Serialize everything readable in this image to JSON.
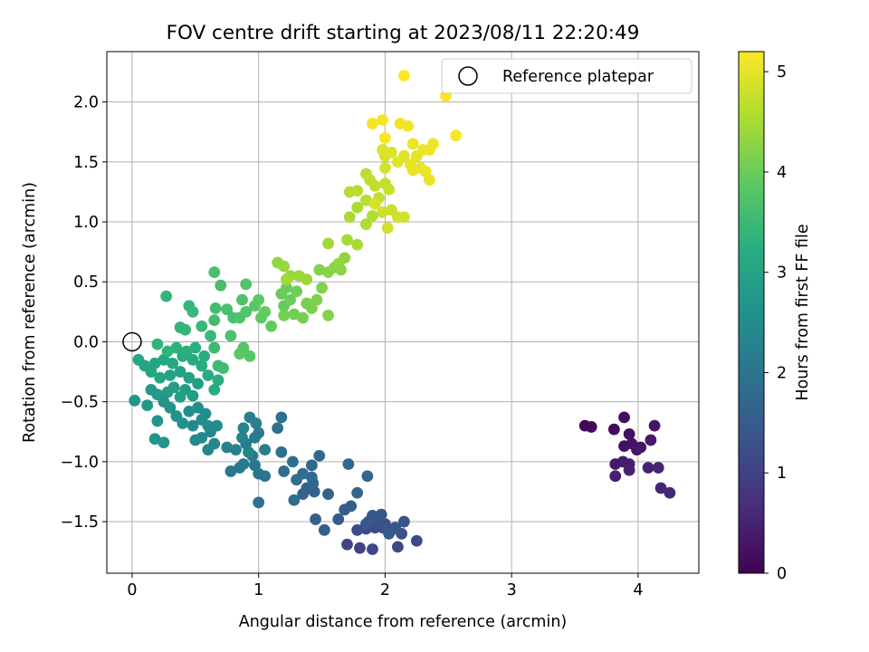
{
  "chart_data": {
    "type": "scatter",
    "title": "FOV centre drift starting at 2023/08/11 22:20:49",
    "xlabel": "Angular distance from reference (arcmin)",
    "ylabel": "Rotation from reference (arcmin)",
    "xlim": [
      -0.2,
      4.48
    ],
    "ylim": [
      -1.93,
      2.42
    ],
    "xticks": [
      0,
      1,
      2,
      3,
      4
    ],
    "xtick_labels": [
      "0",
      "1",
      "2",
      "3",
      "4"
    ],
    "yticks": [
      -1.5,
      -1.0,
      -0.5,
      0.0,
      0.5,
      1.0,
      1.5,
      2.0
    ],
    "ytick_labels": [
      "−1.5",
      "−1.0",
      "−0.5",
      "0.0",
      "0.5",
      "1.0",
      "1.5",
      "2.0"
    ],
    "grid": true,
    "legend": {
      "placement": "top-right",
      "entries": [
        "Reference platepar"
      ]
    },
    "colorbar": {
      "label": "Hours from first FF file",
      "range": [
        0,
        5.2
      ],
      "ticks": [
        0,
        1,
        2,
        3,
        4,
        5
      ],
      "tick_labels": [
        "0",
        "1",
        "2",
        "3",
        "4",
        "5"
      ],
      "colormap": "viridis"
    },
    "reference_point": {
      "x": 0,
      "y": 0,
      "label": "Reference platepar"
    },
    "points": [
      {
        "x": 3.58,
        "y": -0.7,
        "c": 0.1
      },
      {
        "x": 3.63,
        "y": -0.71,
        "c": 0.12
      },
      {
        "x": 3.81,
        "y": -0.73,
        "c": 0.15
      },
      {
        "x": 3.89,
        "y": -0.63,
        "c": 0.18
      },
      {
        "x": 3.93,
        "y": -0.77,
        "c": 0.2
      },
      {
        "x": 3.89,
        "y": -0.87,
        "c": 0.22
      },
      {
        "x": 3.95,
        "y": -0.85,
        "c": 0.25
      },
      {
        "x": 3.99,
        "y": -0.9,
        "c": 0.28
      },
      {
        "x": 4.02,
        "y": -0.88,
        "c": 0.3
      },
      {
        "x": 4.13,
        "y": -0.7,
        "c": 0.33
      },
      {
        "x": 4.1,
        "y": -0.82,
        "c": 0.35
      },
      {
        "x": 3.82,
        "y": -1.02,
        "c": 0.38
      },
      {
        "x": 3.88,
        "y": -1.0,
        "c": 0.4
      },
      {
        "x": 3.93,
        "y": -1.02,
        "c": 0.43
      },
      {
        "x": 3.82,
        "y": -1.12,
        "c": 0.45
      },
      {
        "x": 3.93,
        "y": -1.07,
        "c": 0.48
      },
      {
        "x": 4.08,
        "y": -1.05,
        "c": 0.5
      },
      {
        "x": 4.16,
        "y": -1.05,
        "c": 0.53
      },
      {
        "x": 4.18,
        "y": -1.22,
        "c": 0.55
      },
      {
        "x": 4.25,
        "y": -1.26,
        "c": 0.58
      },
      {
        "x": 1.7,
        "y": -1.69,
        "c": 1.05
      },
      {
        "x": 1.8,
        "y": -1.72,
        "c": 1.08
      },
      {
        "x": 1.9,
        "y": -1.73,
        "c": 1.1
      },
      {
        "x": 2.1,
        "y": -1.71,
        "c": 1.12
      },
      {
        "x": 2.25,
        "y": -1.66,
        "c": 1.15
      },
      {
        "x": 1.78,
        "y": -1.57,
        "c": 1.18
      },
      {
        "x": 1.85,
        "y": -1.56,
        "c": 1.2
      },
      {
        "x": 1.92,
        "y": -1.55,
        "c": 1.22
      },
      {
        "x": 1.98,
        "y": -1.55,
        "c": 1.24
      },
      {
        "x": 2.05,
        "y": -1.57,
        "c": 1.26
      },
      {
        "x": 2.13,
        "y": -1.6,
        "c": 1.28
      },
      {
        "x": 1.87,
        "y": -1.5,
        "c": 1.3
      },
      {
        "x": 1.95,
        "y": -1.47,
        "c": 1.32
      },
      {
        "x": 2.0,
        "y": -1.52,
        "c": 1.34
      },
      {
        "x": 2.08,
        "y": -1.55,
        "c": 1.36
      },
      {
        "x": 2.15,
        "y": -1.5,
        "c": 1.38
      },
      {
        "x": 1.97,
        "y": -1.44,
        "c": 1.4
      },
      {
        "x": 1.9,
        "y": -1.45,
        "c": 1.42
      },
      {
        "x": 1.85,
        "y": -1.52,
        "c": 1.44
      },
      {
        "x": 2.03,
        "y": -1.6,
        "c": 1.46
      },
      {
        "x": 1.63,
        "y": -1.48,
        "c": 1.5
      },
      {
        "x": 1.68,
        "y": -1.4,
        "c": 1.52
      },
      {
        "x": 1.73,
        "y": -1.37,
        "c": 1.54
      },
      {
        "x": 1.52,
        "y": -1.57,
        "c": 1.56
      },
      {
        "x": 1.45,
        "y": -1.48,
        "c": 1.58
      },
      {
        "x": 1.55,
        "y": -1.27,
        "c": 1.6
      },
      {
        "x": 1.44,
        "y": -1.25,
        "c": 1.62
      },
      {
        "x": 1.35,
        "y": -1.27,
        "c": 1.64
      },
      {
        "x": 1.38,
        "y": -1.22,
        "c": 1.66
      },
      {
        "x": 1.43,
        "y": -1.18,
        "c": 1.68
      },
      {
        "x": 1.78,
        "y": -1.26,
        "c": 1.7
      },
      {
        "x": 1.86,
        "y": -1.12,
        "c": 1.72
      },
      {
        "x": 1.71,
        "y": -1.02,
        "c": 1.74
      },
      {
        "x": 1.48,
        "y": -0.95,
        "c": 1.76
      },
      {
        "x": 1.42,
        "y": -1.03,
        "c": 1.78
      },
      {
        "x": 1.42,
        "y": -1.13,
        "c": 1.8
      },
      {
        "x": 1.3,
        "y": -1.15,
        "c": 1.82
      },
      {
        "x": 1.28,
        "y": -1.32,
        "c": 1.84
      },
      {
        "x": 1.35,
        "y": -1.1,
        "c": 1.86
      },
      {
        "x": 1.2,
        "y": -1.08,
        "c": 1.88
      },
      {
        "x": 1.27,
        "y": -1.0,
        "c": 1.9
      },
      {
        "x": 1.18,
        "y": -0.92,
        "c": 1.92
      },
      {
        "x": 1.18,
        "y": -0.63,
        "c": 1.94
      },
      {
        "x": 1.15,
        "y": -0.72,
        "c": 1.96
      },
      {
        "x": 1.0,
        "y": -1.34,
        "c": 1.98
      },
      {
        "x": 1.0,
        "y": -1.1,
        "c": 2.0
      },
      {
        "x": 0.97,
        "y": -1.03,
        "c": 2.02
      },
      {
        "x": 1.05,
        "y": -1.12,
        "c": 2.04
      },
      {
        "x": 0.78,
        "y": -1.08,
        "c": 2.06
      },
      {
        "x": 0.85,
        "y": -1.05,
        "c": 2.08
      },
      {
        "x": 0.88,
        "y": -1.02,
        "c": 2.1
      },
      {
        "x": 0.95,
        "y": -0.95,
        "c": 2.12
      },
      {
        "x": 0.9,
        "y": -0.85,
        "c": 2.14
      },
      {
        "x": 0.97,
        "y": -0.8,
        "c": 2.16
      },
      {
        "x": 1.0,
        "y": -0.76,
        "c": 2.18
      },
      {
        "x": 1.05,
        "y": -0.9,
        "c": 2.2
      },
      {
        "x": 0.93,
        "y": -0.63,
        "c": 2.22
      },
      {
        "x": 0.98,
        "y": -0.68,
        "c": 2.24
      },
      {
        "x": 0.82,
        "y": -0.9,
        "c": 2.26
      },
      {
        "x": 0.75,
        "y": -0.88,
        "c": 2.28
      },
      {
        "x": 0.88,
        "y": -0.72,
        "c": 2.3
      },
      {
        "x": 0.87,
        "y": -0.8,
        "c": 2.32
      },
      {
        "x": 0.92,
        "y": -0.92,
        "c": 2.34
      },
      {
        "x": 0.6,
        "y": -0.9,
        "c": 2.36
      },
      {
        "x": 0.65,
        "y": -0.85,
        "c": 2.38
      },
      {
        "x": 0.62,
        "y": -0.75,
        "c": 2.4
      },
      {
        "x": 0.55,
        "y": -0.8,
        "c": 2.42
      },
      {
        "x": 0.5,
        "y": -0.82,
        "c": 2.44
      },
      {
        "x": 0.48,
        "y": -0.7,
        "c": 2.46
      },
      {
        "x": 0.55,
        "y": -0.65,
        "c": 2.48
      },
      {
        "x": 0.6,
        "y": -0.7,
        "c": 2.5
      },
      {
        "x": 0.67,
        "y": -0.7,
        "c": 2.52
      },
      {
        "x": 0.58,
        "y": -0.6,
        "c": 2.54
      },
      {
        "x": 0.52,
        "y": -0.55,
        "c": 2.56
      },
      {
        "x": 0.45,
        "y": -0.58,
        "c": 2.58
      },
      {
        "x": 0.4,
        "y": -0.68,
        "c": 2.6
      },
      {
        "x": 0.35,
        "y": -0.62,
        "c": 2.62
      },
      {
        "x": 0.3,
        "y": -0.55,
        "c": 2.64
      },
      {
        "x": 0.25,
        "y": -0.5,
        "c": 2.66
      },
      {
        "x": 0.2,
        "y": -0.66,
        "c": 2.68
      },
      {
        "x": 0.18,
        "y": -0.81,
        "c": 2.7
      },
      {
        "x": 0.25,
        "y": -0.84,
        "c": 2.72
      },
      {
        "x": 0.02,
        "y": -0.49,
        "c": 2.74
      },
      {
        "x": 0.12,
        "y": -0.53,
        "c": 2.76
      },
      {
        "x": 0.15,
        "y": -0.4,
        "c": 2.78
      },
      {
        "x": 0.2,
        "y": -0.44,
        "c": 2.8
      },
      {
        "x": 0.28,
        "y": -0.42,
        "c": 2.82
      },
      {
        "x": 0.33,
        "y": -0.38,
        "c": 2.84
      },
      {
        "x": 0.38,
        "y": -0.46,
        "c": 2.86
      },
      {
        "x": 0.42,
        "y": -0.4,
        "c": 2.88
      },
      {
        "x": 0.48,
        "y": -0.45,
        "c": 2.9
      },
      {
        "x": 0.52,
        "y": -0.35,
        "c": 2.92
      },
      {
        "x": 0.45,
        "y": -0.3,
        "c": 2.94
      },
      {
        "x": 0.38,
        "y": -0.25,
        "c": 2.96
      },
      {
        "x": 0.3,
        "y": -0.28,
        "c": 2.98
      },
      {
        "x": 0.22,
        "y": -0.3,
        "c": 3.0
      },
      {
        "x": 0.15,
        "y": -0.25,
        "c": 3.02
      },
      {
        "x": 0.1,
        "y": -0.2,
        "c": 3.04
      },
      {
        "x": 0.05,
        "y": -0.15,
        "c": 3.06
      },
      {
        "x": 0.18,
        "y": -0.18,
        "c": 3.08
      },
      {
        "x": 0.25,
        "y": -0.15,
        "c": 3.1
      },
      {
        "x": 0.32,
        "y": -0.18,
        "c": 3.12
      },
      {
        "x": 0.4,
        "y": -0.12,
        "c": 3.14
      },
      {
        "x": 0.48,
        "y": -0.15,
        "c": 3.16
      },
      {
        "x": 0.55,
        "y": -0.2,
        "c": 3.18
      },
      {
        "x": 0.6,
        "y": -0.28,
        "c": 3.2
      },
      {
        "x": 0.65,
        "y": -0.4,
        "c": 3.22
      },
      {
        "x": 0.68,
        "y": -0.32,
        "c": 3.24
      },
      {
        "x": 0.57,
        "y": -0.12,
        "c": 3.26
      },
      {
        "x": 0.5,
        "y": -0.05,
        "c": 3.28
      },
      {
        "x": 0.43,
        "y": -0.08,
        "c": 3.3
      },
      {
        "x": 0.35,
        "y": -0.05,
        "c": 3.32
      },
      {
        "x": 0.28,
        "y": -0.08,
        "c": 3.34
      },
      {
        "x": 0.2,
        "y": -0.02,
        "c": 3.36
      },
      {
        "x": 0.27,
        "y": 0.38,
        "c": 3.38
      },
      {
        "x": 0.38,
        "y": 0.12,
        "c": 3.4
      },
      {
        "x": 0.42,
        "y": 0.1,
        "c": 3.42
      },
      {
        "x": 0.45,
        "y": 0.3,
        "c": 3.44
      },
      {
        "x": 0.48,
        "y": 0.25,
        "c": 3.46
      },
      {
        "x": 0.55,
        "y": 0.13,
        "c": 3.48
      },
      {
        "x": 0.62,
        "y": 0.05,
        "c": 3.5
      },
      {
        "x": 0.65,
        "y": -0.05,
        "c": 3.52
      },
      {
        "x": 0.68,
        "y": -0.2,
        "c": 3.54
      },
      {
        "x": 0.72,
        "y": -0.22,
        "c": 3.56
      },
      {
        "x": 0.65,
        "y": 0.18,
        "c": 3.58
      },
      {
        "x": 0.66,
        "y": 0.28,
        "c": 3.6
      },
      {
        "x": 0.7,
        "y": 0.47,
        "c": 3.62
      },
      {
        "x": 0.65,
        "y": 0.58,
        "c": 3.64
      },
      {
        "x": 0.75,
        "y": 0.27,
        "c": 3.66
      },
      {
        "x": 0.8,
        "y": 0.2,
        "c": 3.68
      },
      {
        "x": 0.78,
        "y": 0.05,
        "c": 3.7
      },
      {
        "x": 0.85,
        "y": 0.2,
        "c": 3.72
      },
      {
        "x": 0.87,
        "y": 0.35,
        "c": 3.74
      },
      {
        "x": 0.9,
        "y": 0.25,
        "c": 3.76
      },
      {
        "x": 0.9,
        "y": 0.48,
        "c": 3.78
      },
      {
        "x": 0.88,
        "y": -0.05,
        "c": 3.8
      },
      {
        "x": 0.93,
        "y": -0.12,
        "c": 3.82
      },
      {
        "x": 0.85,
        "y": -0.1,
        "c": 3.84
      },
      {
        "x": 0.97,
        "y": 0.3,
        "c": 3.86
      },
      {
        "x": 1.0,
        "y": 0.35,
        "c": 3.88
      },
      {
        "x": 1.02,
        "y": 0.2,
        "c": 3.9
      },
      {
        "x": 1.1,
        "y": 0.13,
        "c": 3.92
      },
      {
        "x": 1.05,
        "y": 0.25,
        "c": 3.94
      },
      {
        "x": 1.2,
        "y": 0.3,
        "c": 3.96
      },
      {
        "x": 1.18,
        "y": 0.4,
        "c": 3.98
      },
      {
        "x": 1.22,
        "y": 0.45,
        "c": 4.0
      },
      {
        "x": 1.25,
        "y": 0.35,
        "c": 4.02
      },
      {
        "x": 1.3,
        "y": 0.42,
        "c": 4.04
      },
      {
        "x": 1.28,
        "y": 0.23,
        "c": 4.06
      },
      {
        "x": 1.2,
        "y": 0.22,
        "c": 4.08
      },
      {
        "x": 1.35,
        "y": 0.2,
        "c": 4.1
      },
      {
        "x": 1.38,
        "y": 0.32,
        "c": 4.12
      },
      {
        "x": 1.42,
        "y": 0.28,
        "c": 4.14
      },
      {
        "x": 1.46,
        "y": 0.35,
        "c": 4.16
      },
      {
        "x": 1.5,
        "y": 0.45,
        "c": 4.18
      },
      {
        "x": 1.55,
        "y": 0.22,
        "c": 4.2
      },
      {
        "x": 1.48,
        "y": 0.6,
        "c": 4.22
      },
      {
        "x": 1.55,
        "y": 0.58,
        "c": 4.24
      },
      {
        "x": 1.6,
        "y": 0.62,
        "c": 4.26
      },
      {
        "x": 1.65,
        "y": 0.6,
        "c": 4.28
      },
      {
        "x": 1.68,
        "y": 0.7,
        "c": 4.3
      },
      {
        "x": 1.63,
        "y": 0.65,
        "c": 4.32
      },
      {
        "x": 1.15,
        "y": 0.66,
        "c": 4.34
      },
      {
        "x": 1.2,
        "y": 0.63,
        "c": 4.36
      },
      {
        "x": 1.25,
        "y": 0.55,
        "c": 4.38
      },
      {
        "x": 1.32,
        "y": 0.55,
        "c": 4.4
      },
      {
        "x": 1.38,
        "y": 0.52,
        "c": 4.42
      },
      {
        "x": 1.22,
        "y": 0.52,
        "c": 4.44
      },
      {
        "x": 1.55,
        "y": 0.82,
        "c": 4.46
      },
      {
        "x": 1.7,
        "y": 0.85,
        "c": 4.48
      },
      {
        "x": 1.78,
        "y": 0.81,
        "c": 4.5
      },
      {
        "x": 1.72,
        "y": 1.04,
        "c": 4.52
      },
      {
        "x": 1.78,
        "y": 1.12,
        "c": 4.54
      },
      {
        "x": 1.85,
        "y": 0.98,
        "c": 4.56
      },
      {
        "x": 1.9,
        "y": 1.05,
        "c": 4.58
      },
      {
        "x": 1.72,
        "y": 1.25,
        "c": 4.6
      },
      {
        "x": 1.78,
        "y": 1.26,
        "c": 4.62
      },
      {
        "x": 1.85,
        "y": 1.18,
        "c": 4.64
      },
      {
        "x": 1.88,
        "y": 1.35,
        "c": 4.66
      },
      {
        "x": 1.85,
        "y": 1.4,
        "c": 4.68
      },
      {
        "x": 1.92,
        "y": 1.3,
        "c": 4.7
      },
      {
        "x": 1.95,
        "y": 1.2,
        "c": 4.72
      },
      {
        "x": 2.0,
        "y": 1.32,
        "c": 4.74
      },
      {
        "x": 2.03,
        "y": 1.27,
        "c": 4.76
      },
      {
        "x": 2.05,
        "y": 1.1,
        "c": 4.78
      },
      {
        "x": 1.98,
        "y": 1.08,
        "c": 4.8
      },
      {
        "x": 2.02,
        "y": 0.95,
        "c": 4.82
      },
      {
        "x": 2.1,
        "y": 1.04,
        "c": 4.84
      },
      {
        "x": 2.15,
        "y": 1.04,
        "c": 4.86
      },
      {
        "x": 1.92,
        "y": 1.15,
        "c": 4.88
      },
      {
        "x": 2.0,
        "y": 1.45,
        "c": 4.88
      },
      {
        "x": 2.0,
        "y": 1.55,
        "c": 4.9
      },
      {
        "x": 1.98,
        "y": 1.6,
        "c": 4.92
      },
      {
        "x": 2.05,
        "y": 1.58,
        "c": 4.94
      },
      {
        "x": 2.1,
        "y": 1.5,
        "c": 4.96
      },
      {
        "x": 2.15,
        "y": 1.55,
        "c": 4.98
      },
      {
        "x": 2.2,
        "y": 1.48,
        "c": 5.0
      },
      {
        "x": 2.25,
        "y": 1.55,
        "c": 5.0
      },
      {
        "x": 2.22,
        "y": 1.43,
        "c": 5.02
      },
      {
        "x": 2.28,
        "y": 1.45,
        "c": 5.02
      },
      {
        "x": 2.32,
        "y": 1.42,
        "c": 5.04
      },
      {
        "x": 2.35,
        "y": 1.35,
        "c": 5.04
      },
      {
        "x": 2.38,
        "y": 1.65,
        "c": 5.06
      },
      {
        "x": 2.35,
        "y": 1.6,
        "c": 5.06
      },
      {
        "x": 2.3,
        "y": 1.6,
        "c": 5.08
      },
      {
        "x": 2.22,
        "y": 1.65,
        "c": 5.08
      },
      {
        "x": 2.18,
        "y": 1.8,
        "c": 5.1
      },
      {
        "x": 2.12,
        "y": 1.82,
        "c": 5.1
      },
      {
        "x": 1.98,
        "y": 1.85,
        "c": 5.12
      },
      {
        "x": 1.9,
        "y": 1.82,
        "c": 5.12
      },
      {
        "x": 2.0,
        "y": 1.7,
        "c": 5.14
      },
      {
        "x": 2.56,
        "y": 1.72,
        "c": 5.14
      },
      {
        "x": 2.48,
        "y": 2.05,
        "c": 5.16
      },
      {
        "x": 2.15,
        "y": 2.22,
        "c": 5.18
      }
    ]
  }
}
